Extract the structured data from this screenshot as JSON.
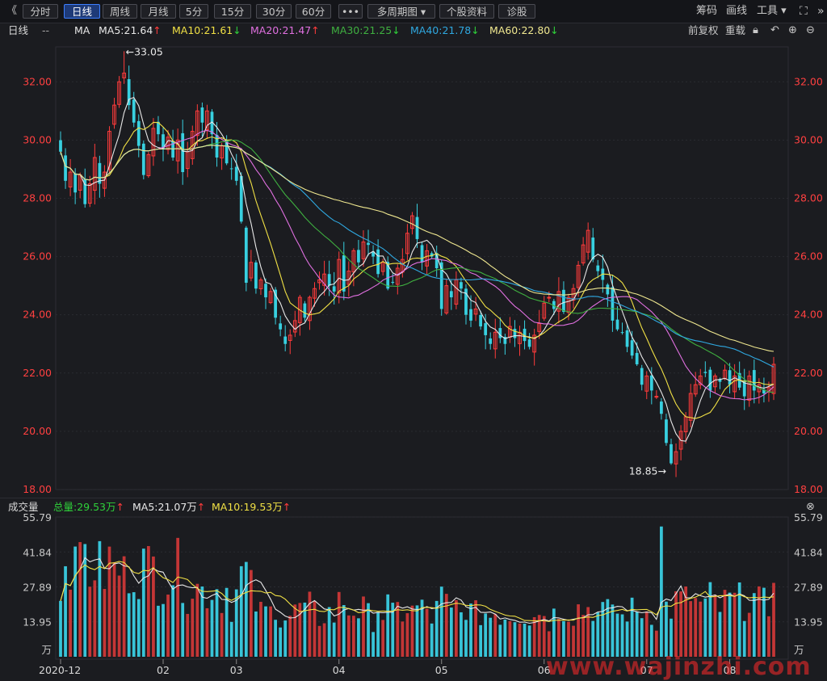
{
  "toolbar": {
    "back": "《",
    "tabs": [
      "分时",
      "日线",
      "周线",
      "月线",
      "5分",
      "15分",
      "30分",
      "60分",
      "•••",
      "多周期图 ▾",
      "个股资料",
      "诊股"
    ],
    "active_index": 1,
    "right": [
      "筹码",
      "画线",
      "工具 ▾"
    ]
  },
  "ma_header": {
    "period": "日线",
    "dash": "--",
    "ma_label": "MA",
    "items": [
      {
        "text": "MA5:21.64",
        "arrow": "↑",
        "dir": "up",
        "color": "#e8e8e8"
      },
      {
        "text": "MA10:21.61",
        "arrow": "↓",
        "dir": "dn",
        "color": "#f0e045"
      },
      {
        "text": "MA20:21.47",
        "arrow": "↑",
        "dir": "up",
        "color": "#e070e0"
      },
      {
        "text": "MA30:21.25",
        "arrow": "↓",
        "dir": "dn",
        "color": "#3fb040"
      },
      {
        "text": "MA40:21.78",
        "arrow": "↓",
        "dir": "dn",
        "color": "#2fa8e0"
      },
      {
        "text": "MA60:22.80",
        "arrow": "↓",
        "dir": "dn",
        "color": "#f0e890"
      }
    ],
    "right": [
      "前复权",
      "重载"
    ]
  },
  "vol_header": {
    "title": "成交量",
    "total": "总量:29.53万",
    "ma5": "MA5:21.07万",
    "ma10": "MA10:19.53万",
    "up_arrow": "↑"
  },
  "watermark": "www.wajinzhi.com",
  "chart_data": [
    {
      "type": "candlestick",
      "ylim": [
        18.0,
        33.2
      ],
      "y_ticks": [
        "18.00",
        "20.00",
        "22.00",
        "24.00",
        "26.00",
        "28.00",
        "30.00",
        "32.00"
      ],
      "max_label": "←33.05",
      "min_label": "18.85→",
      "x_ticks": [
        "2020-12",
        "02",
        "03",
        "04",
        "05",
        "06",
        "07",
        "08"
      ],
      "ma_colors": {
        "ma5": "#e8e8e8",
        "ma10": "#f0e045",
        "ma20": "#e070e0",
        "ma30": "#3fb040",
        "ma40": "#2fa8e0",
        "ma60": "#f0e890"
      },
      "close": [
        29.6,
        28.6,
        28.9,
        28.2,
        28.8,
        27.8,
        28.5,
        29.4,
        28.5,
        28.9,
        30.3,
        31.2,
        32.0,
        32.3,
        31.2,
        30.6,
        29.8,
        28.8,
        29.5,
        30.4,
        30.2,
        29.7,
        30.1,
        29.4,
        30.0,
        28.9,
        29.6,
        30.3,
        31.0,
        30.6,
        31.0,
        30.2,
        29.4,
        29.8,
        29.2,
        29.0,
        28.6,
        27.2,
        25.1,
        25.8,
        24.9,
        25.2,
        24.6,
        24.8,
        23.9,
        23.5,
        23.0,
        23.3,
        23.8,
        24.6,
        23.9,
        24.6,
        24.9,
        25.2,
        25.4,
        25.0,
        24.8,
        25.9,
        24.8,
        25.5,
        26.2,
        25.8,
        26.5,
        26.4,
        26.0,
        25.4,
        25.8,
        24.9,
        25.1,
        25.6,
        25.9,
        26.8,
        27.4,
        26.6,
        25.8,
        26.2,
        26.0,
        25.6,
        24.2,
        25.0,
        24.6,
        25.2,
        24.9,
        24.0,
        23.8,
        24.2,
        23.6,
        23.3,
        23.0,
        23.4,
        23.2,
        23.0,
        23.6,
        23.2,
        23.4,
        23.1,
        22.9,
        23.3,
        23.7,
        24.4,
        24.6,
        24.2,
        24.8,
        24.1,
        24.6,
        24.9,
        25.7,
        26.4,
        26.9,
        25.9,
        25.5,
        25.2,
        24.7,
        23.8,
        23.5,
        23.4,
        22.9,
        22.6,
        22.3,
        21.6,
        21.9,
        21.4,
        21.2,
        20.6,
        19.6,
        18.9,
        19.3,
        20.0,
        20.5,
        21.3,
        21.6,
        21.9,
        22.0,
        21.4,
        21.9,
        21.7,
        22.1,
        21.6,
        21.9,
        21.5,
        21.2,
        21.9,
        21.4,
        21.6,
        21.3,
        21.5,
        22.3
      ]
    },
    {
      "type": "bar",
      "title": "成交量",
      "ylim": [
        0,
        55.79
      ],
      "y_ticks": [
        "55.79",
        "41.84",
        "27.89",
        "13.95"
      ],
      "unit": "万",
      "ma_colors": {
        "ma5": "#e8e8e8",
        "ma10": "#f0e045"
      }
    }
  ]
}
